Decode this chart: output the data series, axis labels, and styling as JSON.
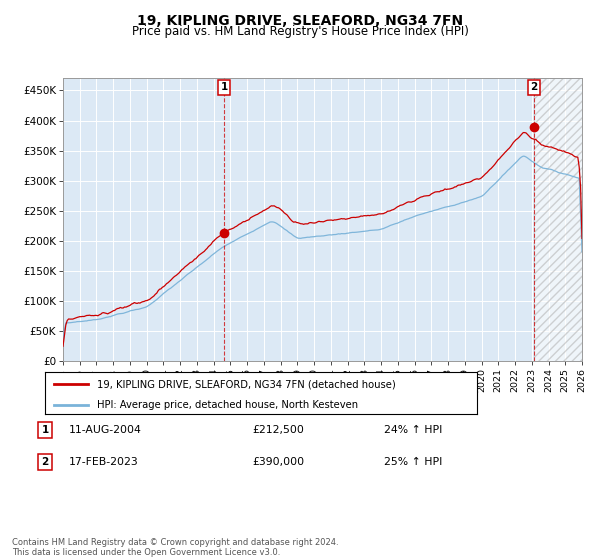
{
  "title": "19, KIPLING DRIVE, SLEAFORD, NG34 7FN",
  "subtitle": "Price paid vs. HM Land Registry's House Price Index (HPI)",
  "title_fontsize": 10,
  "subtitle_fontsize": 8.5,
  "hpi_color": "#7ab3d9",
  "price_color": "#cc0000",
  "marker_color": "#cc0000",
  "background_color": "#dce9f5",
  "grid_color": "#ffffff",
  "annotation1_label": "1",
  "annotation2_label": "2",
  "sale1_date": 2004.62,
  "sale1_price": 212500,
  "sale2_date": 2023.12,
  "sale2_price": 390000,
  "ylim": [
    0,
    470000
  ],
  "xlim": [
    1995,
    2026
  ],
  "yticks": [
    0,
    50000,
    100000,
    150000,
    200000,
    250000,
    300000,
    350000,
    400000,
    450000
  ],
  "ytick_labels": [
    "£0",
    "£50K",
    "£100K",
    "£150K",
    "£200K",
    "£250K",
    "£300K",
    "£350K",
    "£400K",
    "£450K"
  ],
  "xticks": [
    1995,
    1996,
    1997,
    1998,
    1999,
    2000,
    2001,
    2002,
    2003,
    2004,
    2005,
    2006,
    2007,
    2008,
    2009,
    2010,
    2011,
    2012,
    2013,
    2014,
    2015,
    2016,
    2017,
    2018,
    2019,
    2020,
    2021,
    2022,
    2023,
    2024,
    2025,
    2026
  ],
  "legend_price_label": "19, KIPLING DRIVE, SLEAFORD, NG34 7FN (detached house)",
  "legend_hpi_label": "HPI: Average price, detached house, North Kesteven",
  "annotation_table": [
    {
      "num": "1",
      "date": "11-AUG-2004",
      "price": "£212,500",
      "hpi": "24% ↑ HPI"
    },
    {
      "num": "2",
      "date": "17-FEB-2023",
      "price": "£390,000",
      "hpi": "25% ↑ HPI"
    }
  ],
  "footer": "Contains HM Land Registry data © Crown copyright and database right 2024.\nThis data is licensed under the Open Government Licence v3.0.",
  "hatched_region_start": 2023.12,
  "hatched_region_end": 2026
}
